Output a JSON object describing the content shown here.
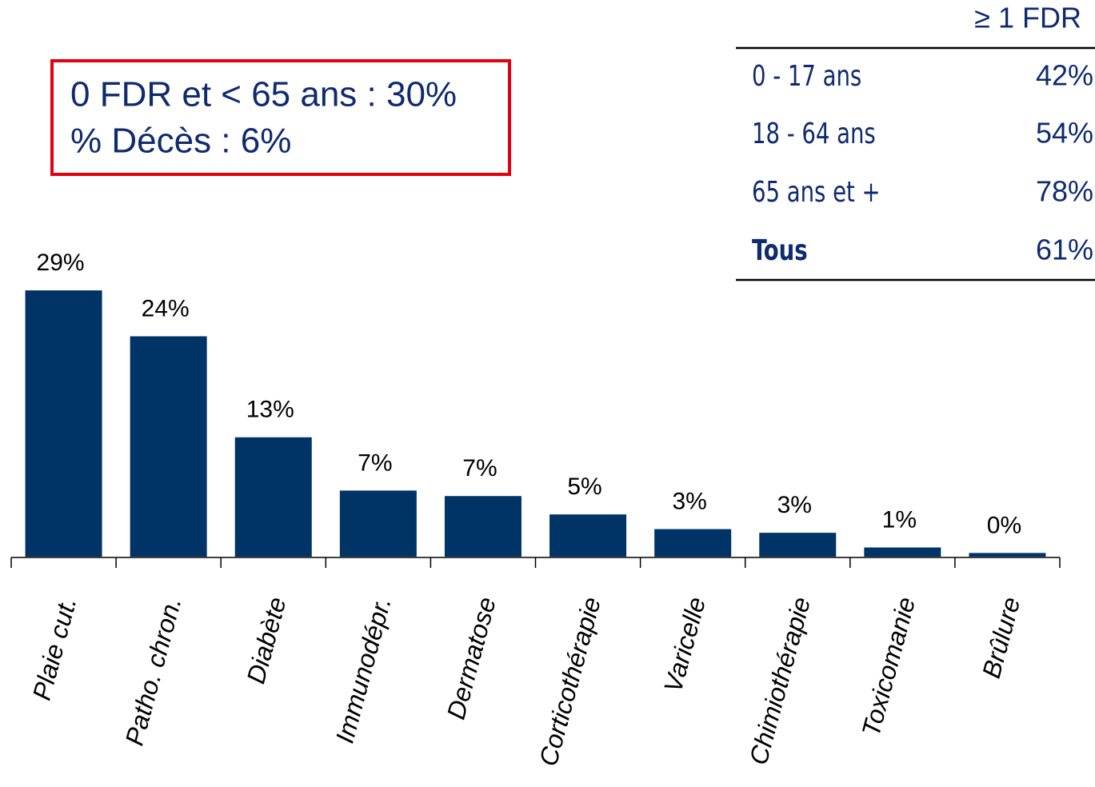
{
  "chart_data": {
    "type": "bar",
    "categories": [
      "Plaie cut.",
      "Patho. chron.",
      "Diabète",
      "Immunodépr.",
      "Dermatose",
      "Corticothérapie",
      "Varicelle",
      "Chimiothérapie",
      "Toxicomanie",
      "Brûlure"
    ],
    "values": [
      29,
      24,
      13,
      7.2,
      6.6,
      4.6,
      3,
      2.6,
      1,
      0.4
    ],
    "value_labels": [
      "29%",
      "24%",
      "13%",
      "7%",
      "7%",
      "5%",
      "3%",
      "3%",
      "1%",
      "0%"
    ],
    "color": "#003366"
  },
  "info_box": {
    "lines": [
      "0 FDR et < 65 ans : 30%",
      "% Décès : 6%"
    ]
  },
  "table": {
    "header": "≥ 1 FDR",
    "rows": [
      [
        "0 - 17 ans",
        "42%"
      ],
      [
        "18 - 64 ans",
        "54%"
      ],
      [
        "65 ans et +",
        "78%"
      ],
      [
        "Tous",
        "61%"
      ]
    ]
  }
}
